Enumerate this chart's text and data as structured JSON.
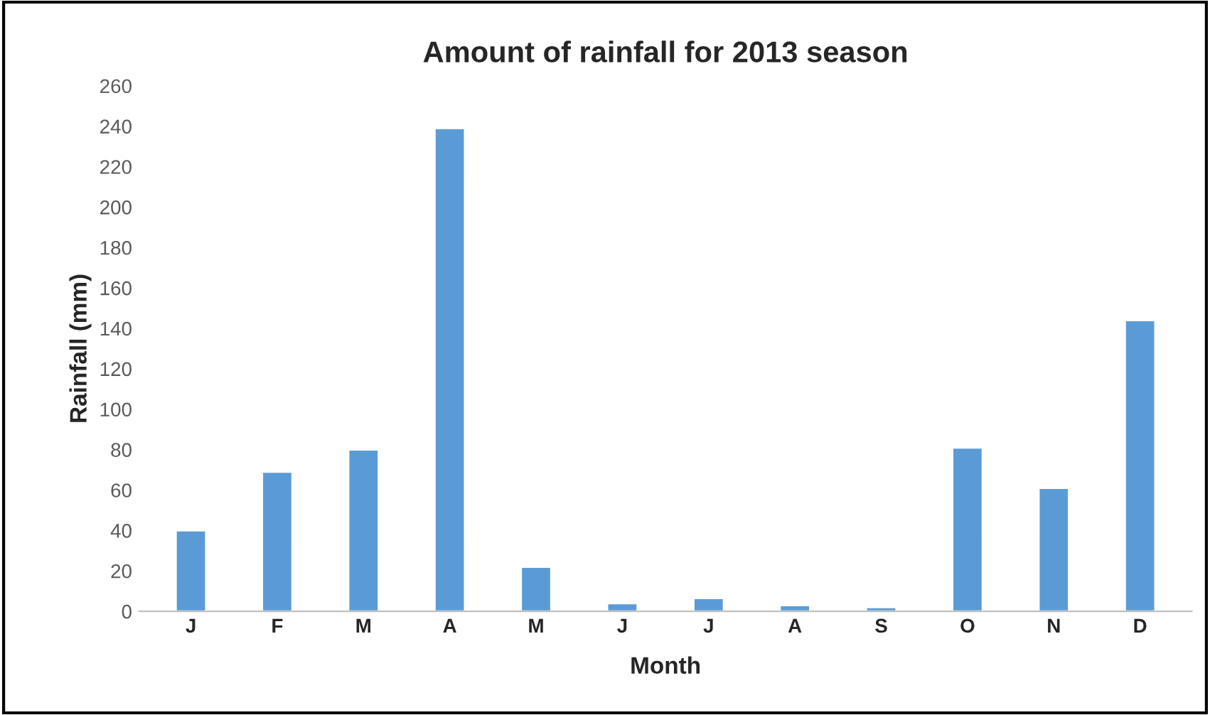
{
  "chart_data": {
    "type": "bar",
    "title": "Amount of rainfall for 2013 season",
    "xlabel": "Month",
    "ylabel": "Rainfall (mm)",
    "categories": [
      "J",
      "F",
      "M",
      "A",
      "M",
      "J",
      "J",
      "A",
      "S",
      "O",
      "N",
      "D"
    ],
    "values": [
      40,
      69,
      80,
      239,
      22,
      4,
      6.5,
      3,
      2,
      81,
      61,
      144
    ],
    "color": "#5b9bd5",
    "ylim": [
      0,
      260
    ],
    "yticks": [
      0,
      20,
      40,
      60,
      80,
      100,
      120,
      140,
      160,
      180,
      200,
      220,
      240,
      260
    ],
    "grid": false
  }
}
